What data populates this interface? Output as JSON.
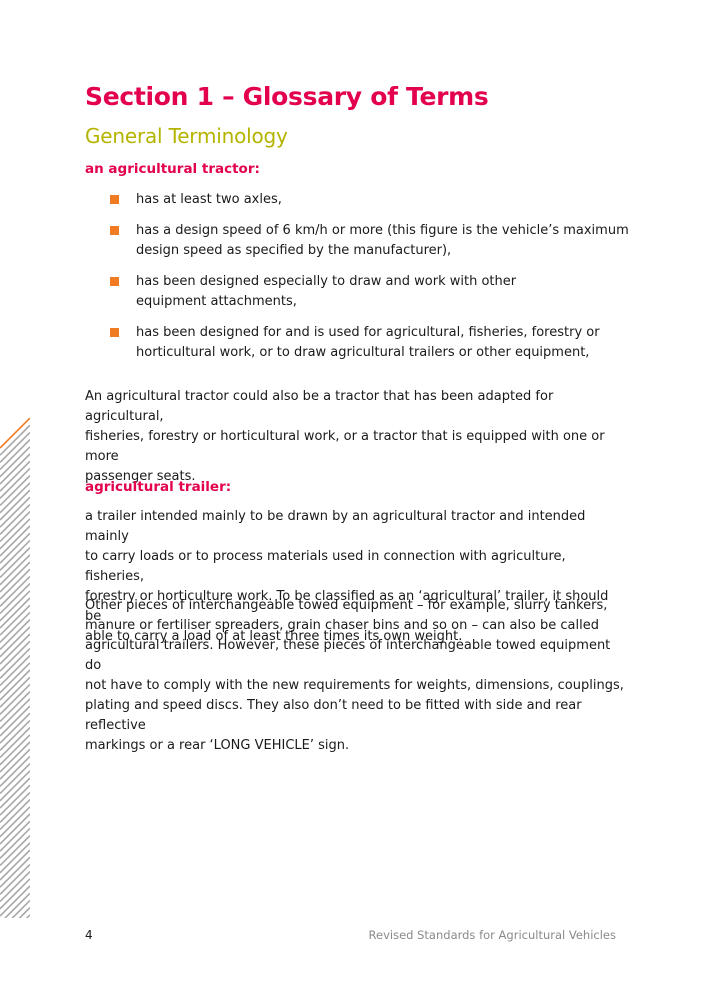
{
  "header": {
    "section_title": "Section 1 – Glossary of Terms",
    "subtitle": "General Terminology"
  },
  "tractor": {
    "term": "an agricultural tractor:",
    "bullets": [
      [
        "has at least two axles,"
      ],
      [
        "has a design speed of 6 km/h or more (this figure is the vehicle’s maximum",
        "design speed as specified by the manufacturer),"
      ],
      [
        "has been designed especially to draw and work with other",
        "equipment attachments,"
      ],
      [
        "has been designed for and is used for agricultural, fisheries, forestry or",
        "horticultural work, or to draw agricultural trailers or other equipment,"
      ]
    ],
    "paragraph": [
      "An agricultural tractor could also be a tractor that has been adapted for agricultural,",
      "fisheries, forestry or horticultural work, or a tractor that is equipped with one or more",
      "passenger seats."
    ]
  },
  "trailer": {
    "term": "agricultural trailer:",
    "paragraph1": [
      "a trailer intended mainly to be drawn by an agricultural tractor and intended mainly",
      "to carry loads or to process materials used in connection with agriculture, fisheries,",
      "forestry or horticulture work. To be classified as an ‘agricultural’ trailer, it should be",
      "able to carry a load of at least three times its own weight."
    ],
    "paragraph2": [
      "Other pieces of interchangeable towed equipment – for example, slurry tankers,",
      "manure or fertiliser spreaders, grain chaser bins and so on – can also be called",
      "agricultural trailers. However, these pieces of interchangeable towed equipment do",
      "not have to comply with the new requirements for weights, dimensions, couplings,",
      "plating and speed discs. They also don’t need to be fitted with side and rear reflective",
      "markings or a rear ‘LONG VEHICLE’ sign."
    ]
  },
  "footer": {
    "page_number": "4",
    "document_title": "Revised Standards for Agricultural Vehicles"
  },
  "colors": {
    "heading": "#e3004f",
    "subheading": "#b4b400",
    "bullet": "#f07b22",
    "stripe_grey": "#a8a8a8",
    "stripe_accent": "#f07b22"
  }
}
